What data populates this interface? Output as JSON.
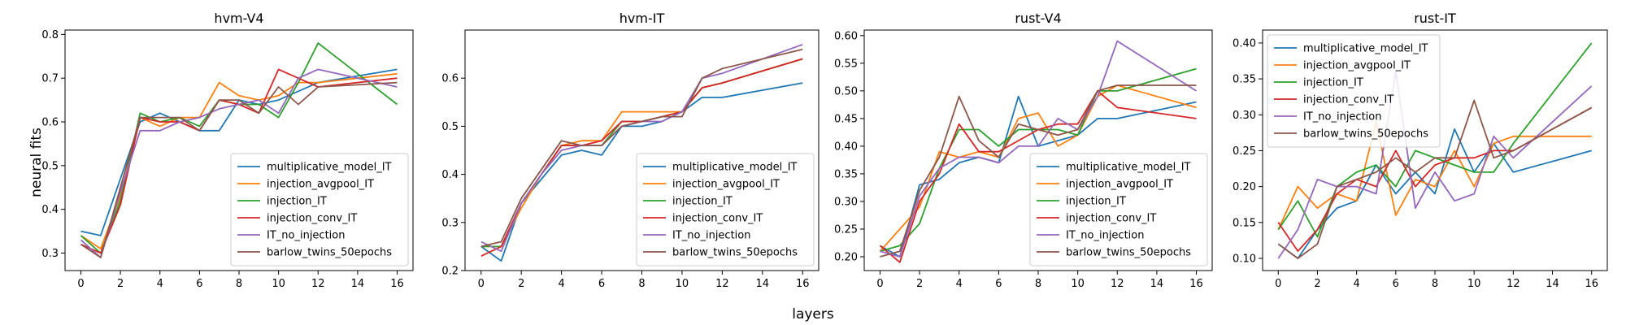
{
  "figure": {
    "xlabel": "layers",
    "ylabel": "neural fits"
  },
  "chart_data": [
    {
      "type": "line",
      "title": "hvm-V4",
      "xlabel": "layers",
      "ylabel": "neural fits",
      "x": [
        0,
        1,
        2,
        3,
        4,
        5,
        6,
        7,
        8,
        9,
        10,
        11,
        12,
        16
      ],
      "xticks": [
        0,
        2,
        4,
        6,
        8,
        10,
        12,
        14,
        16
      ],
      "yticks": [
        0.3,
        0.4,
        0.5,
        0.6,
        0.7,
        0.8
      ],
      "xlim": [
        -0.8,
        16.8
      ],
      "ylim": [
        0.26,
        0.81
      ],
      "legend_position": "lower-right",
      "grid": false,
      "series": [
        {
          "name": "multiplicative_model_IT",
          "color": "#1f77b4",
          "values": [
            0.35,
            0.34,
            0.47,
            0.6,
            0.62,
            0.6,
            0.58,
            0.58,
            0.65,
            0.64,
            0.65,
            0.67,
            0.69,
            0.72
          ]
        },
        {
          "name": "injection_avgpool_IT",
          "color": "#ff7f0e",
          "values": [
            0.34,
            0.31,
            0.43,
            0.61,
            0.59,
            0.61,
            0.61,
            0.69,
            0.66,
            0.65,
            0.66,
            0.69,
            0.69,
            0.71
          ]
        },
        {
          "name": "injection_IT",
          "color": "#2ca02c",
          "values": [
            0.34,
            0.3,
            0.42,
            0.62,
            0.6,
            0.61,
            0.59,
            0.65,
            0.64,
            0.64,
            0.61,
            0.69,
            0.78,
            0.64
          ]
        },
        {
          "name": "injection_conv_IT",
          "color": "#d62728",
          "values": [
            0.32,
            0.3,
            0.41,
            0.61,
            0.6,
            0.6,
            0.58,
            0.65,
            0.64,
            0.62,
            0.72,
            0.7,
            0.68,
            0.7
          ]
        },
        {
          "name": "IT_no_injection",
          "color": "#9467bd",
          "values": [
            0.33,
            0.29,
            0.44,
            0.58,
            0.58,
            0.6,
            0.61,
            0.63,
            0.64,
            0.65,
            0.62,
            0.7,
            0.72,
            0.68
          ]
        },
        {
          "name": "barlow_twins_50epochs",
          "color": "#8c564b",
          "values": [
            0.32,
            0.29,
            0.45,
            0.61,
            0.61,
            0.61,
            0.58,
            0.65,
            0.65,
            0.62,
            0.68,
            0.64,
            0.68,
            0.69
          ]
        }
      ]
    },
    {
      "type": "line",
      "title": "hvm-IT",
      "xlabel": "layers",
      "ylabel": "neural fits",
      "x": [
        0,
        1,
        2,
        3,
        4,
        5,
        6,
        7,
        8,
        9,
        10,
        11,
        12,
        16
      ],
      "xticks": [
        0,
        2,
        4,
        6,
        8,
        10,
        12,
        14,
        16
      ],
      "yticks": [
        0.2,
        0.3,
        0.4,
        0.5,
        0.6
      ],
      "xlim": [
        -0.8,
        16.8
      ],
      "ylim": [
        0.2,
        0.7
      ],
      "legend_position": "lower-right",
      "grid": false,
      "series": [
        {
          "name": "multiplicative_model_IT",
          "color": "#1f77b4",
          "values": [
            0.25,
            0.22,
            0.34,
            0.39,
            0.44,
            0.45,
            0.44,
            0.5,
            0.5,
            0.51,
            0.53,
            0.56,
            0.56,
            0.59
          ]
        },
        {
          "name": "injection_avgpool_IT",
          "color": "#ff7f0e",
          "values": [
            0.25,
            0.25,
            0.33,
            0.4,
            0.46,
            0.47,
            0.47,
            0.53,
            0.53,
            0.53,
            0.53,
            0.58,
            0.59,
            0.64
          ]
        },
        {
          "name": "injection_IT",
          "color": "#2ca02c",
          "values": [
            0.25,
            0.25,
            0.34,
            0.4,
            0.46,
            0.46,
            0.46,
            0.51,
            0.51,
            0.52,
            0.53,
            0.58,
            0.59,
            0.64
          ]
        },
        {
          "name": "injection_conv_IT",
          "color": "#d62728",
          "values": [
            0.23,
            0.25,
            0.34,
            0.4,
            0.46,
            0.46,
            0.47,
            0.51,
            0.51,
            0.52,
            0.53,
            0.58,
            0.59,
            0.64
          ]
        },
        {
          "name": "IT_no_injection",
          "color": "#9467bd",
          "values": [
            0.26,
            0.24,
            0.34,
            0.4,
            0.45,
            0.46,
            0.46,
            0.5,
            0.51,
            0.51,
            0.53,
            0.6,
            0.61,
            0.67
          ]
        },
        {
          "name": "barlow_twins_50epochs",
          "color": "#8c564b",
          "values": [
            0.25,
            0.26,
            0.35,
            0.41,
            0.47,
            0.46,
            0.46,
            0.5,
            0.51,
            0.52,
            0.52,
            0.6,
            0.62,
            0.66
          ]
        }
      ]
    },
    {
      "type": "line",
      "title": "rust-V4",
      "xlabel": "layers",
      "ylabel": "neural fits",
      "x": [
        0,
        1,
        2,
        3,
        4,
        5,
        6,
        7,
        8,
        9,
        10,
        11,
        12,
        16
      ],
      "xticks": [
        0,
        2,
        4,
        6,
        8,
        10,
        12,
        14,
        16
      ],
      "yticks": [
        0.2,
        0.25,
        0.3,
        0.35,
        0.4,
        0.45,
        0.5,
        0.55,
        0.6
      ],
      "xlim": [
        -0.8,
        16.8
      ],
      "ylim": [
        0.175,
        0.61
      ],
      "legend_position": "lower-right",
      "grid": false,
      "series": [
        {
          "name": "multiplicative_model_IT",
          "color": "#1f77b4",
          "values": [
            0.22,
            0.2,
            0.33,
            0.34,
            0.37,
            0.38,
            0.37,
            0.49,
            0.4,
            0.41,
            0.42,
            0.45,
            0.45,
            0.48
          ]
        },
        {
          "name": "injection_avgpool_IT",
          "color": "#ff7f0e",
          "values": [
            0.21,
            0.25,
            0.29,
            0.39,
            0.38,
            0.39,
            0.38,
            0.45,
            0.46,
            0.4,
            0.42,
            0.49,
            0.51,
            0.47
          ]
        },
        {
          "name": "injection_IT",
          "color": "#2ca02c",
          "values": [
            0.21,
            0.22,
            0.26,
            0.36,
            0.43,
            0.43,
            0.4,
            0.43,
            0.43,
            0.43,
            0.42,
            0.5,
            0.5,
            0.54
          ]
        },
        {
          "name": "injection_conv_IT",
          "color": "#d62728",
          "values": [
            0.22,
            0.19,
            0.3,
            0.35,
            0.44,
            0.39,
            0.39,
            0.41,
            0.43,
            0.44,
            0.44,
            0.5,
            0.47,
            0.45
          ]
        },
        {
          "name": "IT_no_injection",
          "color": "#9467bd",
          "values": [
            0.21,
            0.2,
            0.31,
            0.36,
            0.38,
            0.38,
            0.37,
            0.4,
            0.4,
            0.45,
            0.43,
            0.49,
            0.59,
            0.5
          ]
        },
        {
          "name": "barlow_twins_50epochs",
          "color": "#8c564b",
          "values": [
            0.2,
            0.21,
            0.32,
            0.38,
            0.49,
            0.41,
            0.38,
            0.44,
            0.43,
            0.42,
            0.43,
            0.5,
            0.51,
            0.51
          ]
        }
      ]
    },
    {
      "type": "line",
      "title": "rust-IT",
      "xlabel": "layers",
      "ylabel": "neural fits",
      "x": [
        0,
        1,
        2,
        3,
        4,
        5,
        6,
        7,
        8,
        9,
        10,
        11,
        12,
        16
      ],
      "xticks": [
        0,
        2,
        4,
        6,
        8,
        10,
        12,
        14,
        16
      ],
      "yticks": [
        0.1,
        0.15,
        0.2,
        0.25,
        0.3,
        0.35,
        0.4
      ],
      "xlim": [
        -0.8,
        16.8
      ],
      "ylim": [
        0.083,
        0.418
      ],
      "legend_position": "upper-left",
      "grid": false,
      "series": [
        {
          "name": "multiplicative_model_IT",
          "color": "#1f77b4",
          "values": [
            0.12,
            0.1,
            0.14,
            0.17,
            0.18,
            0.23,
            0.19,
            0.22,
            0.19,
            0.28,
            0.22,
            0.26,
            0.22,
            0.25
          ]
        },
        {
          "name": "injection_avgpool_IT",
          "color": "#ff7f0e",
          "values": [
            0.14,
            0.2,
            0.17,
            0.19,
            0.18,
            0.29,
            0.16,
            0.21,
            0.2,
            0.25,
            0.2,
            0.26,
            0.27,
            0.27
          ]
        },
        {
          "name": "injection_IT",
          "color": "#2ca02c",
          "values": [
            0.14,
            0.18,
            0.13,
            0.2,
            0.22,
            0.23,
            0.2,
            0.25,
            0.24,
            0.23,
            0.22,
            0.22,
            0.26,
            0.4
          ]
        },
        {
          "name": "injection_conv_IT",
          "color": "#d62728",
          "values": [
            0.15,
            0.11,
            0.14,
            0.19,
            0.21,
            0.2,
            0.25,
            0.2,
            0.23,
            0.24,
            0.24,
            0.25,
            0.25,
            0.31
          ]
        },
        {
          "name": "IT_no_injection",
          "color": "#9467bd",
          "values": [
            0.1,
            0.14,
            0.21,
            0.2,
            0.2,
            0.19,
            0.36,
            0.17,
            0.22,
            0.18,
            0.19,
            0.27,
            0.24,
            0.34
          ]
        },
        {
          "name": "barlow_twins_50epochs",
          "color": "#8c564b",
          "values": [
            0.12,
            0.1,
            0.12,
            0.2,
            0.21,
            0.22,
            0.24,
            0.22,
            0.24,
            0.24,
            0.32,
            0.24,
            0.25,
            0.31
          ]
        }
      ]
    }
  ]
}
